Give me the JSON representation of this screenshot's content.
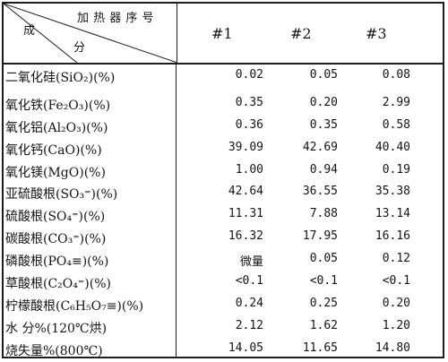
{
  "header": {
    "diagonal_top": "加 热 器 序 号",
    "diagonal_left": "成",
    "diagonal_bottom": "分",
    "columns": [
      "#1",
      "#2",
      "#3"
    ]
  },
  "rows": [
    {
      "label": "二氧化硅(SiO₂)(%)",
      "values": [
        "0.02",
        "0.05",
        "0.08"
      ]
    },
    {
      "label": "氧化铁(Fe₂O₃)(%)",
      "values": [
        "0.35",
        "0.20",
        "2.99"
      ]
    },
    {
      "label": "氧化铝(Al₂O₃)(%)",
      "values": [
        "0.36",
        "0.35",
        "0.58"
      ]
    },
    {
      "label": "氧化钙(CaO)(%)",
      "values": [
        "39.09",
        "42.69",
        "40.40"
      ]
    },
    {
      "label": "氧化镁(MgO)(%)",
      "values": [
        "1.00",
        "0.94",
        "0.19"
      ]
    },
    {
      "label": "亚硫酸根(SO₃⁼)(%)",
      "values": [
        "42.64",
        "36.55",
        "35.38"
      ]
    },
    {
      "label": "硫酸根(SO₄⁼)(%)",
      "values": [
        "11.31",
        "7.88",
        "13.14"
      ]
    },
    {
      "label": "碳酸根(CO₃⁼)(%)",
      "values": [
        "16.32",
        "17.95",
        "16.16"
      ]
    },
    {
      "label": "磷酸根(PO₄≡)(%)",
      "values": [
        "微量",
        "0.05",
        "0.12"
      ]
    },
    {
      "label": "草酸根(C₂O₄⁼)(%)",
      "values": [
        "<0.1",
        "<0.1",
        "<0.1"
      ]
    },
    {
      "label": "柠檬酸根(C₆H₅O₇≡)(%)",
      "values": [
        "0.24",
        "0.25",
        "0.20"
      ]
    },
    {
      "label": "水 分%(120℃烘)",
      "values": [
        "2.12",
        "1.62",
        "1.20"
      ]
    },
    {
      "label": "烧失量%(800℃)",
      "values": [
        "14.05",
        "11.65",
        "14.80"
      ]
    }
  ]
}
